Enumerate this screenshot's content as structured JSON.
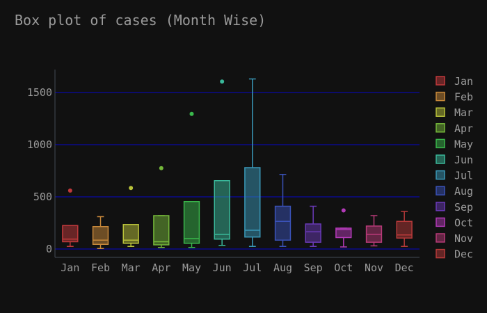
{
  "chart_data": {
    "type": "box",
    "title": "Box plot of cases (Month Wise)",
    "xlabel": "",
    "ylabel": "",
    "ylim": [
      -80,
      1720
    ],
    "yticks": [
      0,
      500,
      1000,
      1500
    ],
    "grid": true,
    "legend_position": "right",
    "gridline_color": "#0a0a8c",
    "categories": [
      "Jan",
      "Feb",
      "Mar",
      "Apr",
      "May",
      "Jun",
      "Jul",
      "Aug",
      "Sep",
      "Oct",
      "Nov",
      "Dec"
    ],
    "series": [
      {
        "name": "Jan",
        "color": "#c0393b",
        "min": 25,
        "q1": 70,
        "median": 95,
        "q3": 225,
        "max": 225,
        "outliers": [
          560
        ]
      },
      {
        "name": "Feb",
        "color": "#c9893a",
        "min": 5,
        "q1": 45,
        "median": 85,
        "q3": 215,
        "max": 310,
        "outliers": []
      },
      {
        "name": "Mar",
        "color": "#b9c23a",
        "min": 25,
        "q1": 55,
        "median": 85,
        "q3": 235,
        "max": 235,
        "outliers": [
          585
        ]
      },
      {
        "name": "Apr",
        "color": "#75b83a",
        "min": 15,
        "q1": 40,
        "median": 70,
        "q3": 320,
        "max": 320,
        "outliers": [
          775
        ]
      },
      {
        "name": "May",
        "color": "#3ab84c",
        "min": 15,
        "q1": 55,
        "median": 100,
        "q3": 455,
        "max": 455,
        "outliers": [
          1295
        ]
      },
      {
        "name": "Jun",
        "color": "#3ab89a",
        "min": 35,
        "q1": 95,
        "median": 140,
        "q3": 655,
        "max": 655,
        "outliers": [
          1605
        ]
      },
      {
        "name": "Jul",
        "color": "#3a98b8",
        "min": 25,
        "q1": 115,
        "median": 180,
        "q3": 780,
        "max": 1630,
        "outliers": []
      },
      {
        "name": "Aug",
        "color": "#3a52b8",
        "min": 25,
        "q1": 85,
        "median": 265,
        "q3": 410,
        "max": 715,
        "outliers": []
      },
      {
        "name": "Sep",
        "color": "#6a3ab8",
        "min": 25,
        "q1": 65,
        "median": 165,
        "q3": 240,
        "max": 410,
        "outliers": []
      },
      {
        "name": "Oct",
        "color": "#b33ab8",
        "min": 20,
        "q1": 110,
        "median": 185,
        "q3": 200,
        "max": 200,
        "outliers": [
          370
        ]
      },
      {
        "name": "Nov",
        "color": "#b83a78",
        "min": 30,
        "q1": 65,
        "median": 140,
        "q3": 220,
        "max": 320,
        "outliers": []
      },
      {
        "name": "Dec",
        "color": "#b83a3a",
        "min": 25,
        "q1": 105,
        "median": 135,
        "q3": 265,
        "max": 360,
        "outliers": []
      }
    ]
  }
}
